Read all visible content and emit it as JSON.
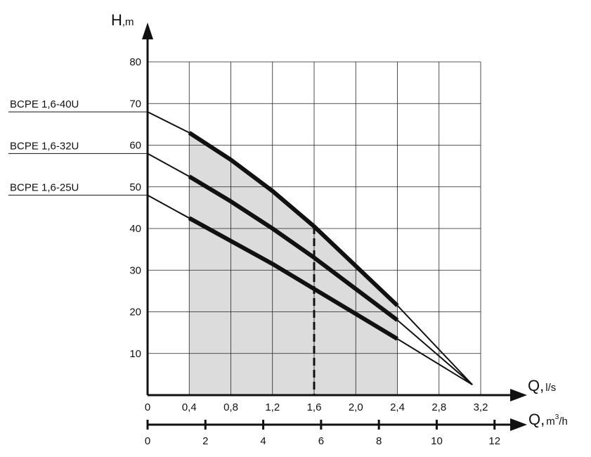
{
  "chart_data": {
    "type": "line",
    "title": "",
    "ylabel": {
      "main": "H",
      "unit": ",m"
    },
    "xlabel_primary": {
      "main": "Q,",
      "unit": "l/s"
    },
    "xlabel_secondary": {
      "main": "Q,",
      "unit_pre": "m",
      "sup": "3",
      "unit_post": "/h"
    },
    "ylim": [
      0,
      80
    ],
    "xlim": [
      0,
      3.2
    ],
    "grid": true,
    "y_ticks": [
      "10",
      "20",
      "30",
      "40",
      "50",
      "60",
      "70",
      "80"
    ],
    "x_ticks_primary": [
      "0",
      "0,4",
      "0,8",
      "1,2",
      "1,6",
      "2,0",
      "2,4",
      "2,8",
      "3,2"
    ],
    "x_ticks_secondary": [
      "0",
      "2",
      "4",
      "6",
      "8",
      "10",
      "12"
    ],
    "operating_range": {
      "q_min": 0.4,
      "q_max": 2.4
    },
    "nominal_flow": 1.6,
    "series": [
      {
        "name": "BCPE  1,6-40U",
        "x": [
          0,
          0.4,
          0.8,
          1.2,
          1.6,
          2.0,
          2.4,
          3.12
        ],
        "y": [
          68,
          63,
          56.5,
          49,
          40.5,
          31,
          21.5,
          2.5
        ]
      },
      {
        "name": "BCPE  1,6-32U",
        "x": [
          0,
          0.4,
          0.8,
          1.2,
          1.6,
          2.0,
          2.4,
          3.12
        ],
        "y": [
          58,
          52.5,
          46.5,
          40,
          33,
          25.5,
          18,
          2.5
        ]
      },
      {
        "name": "BCPE  1,6-25U",
        "x": [
          0,
          0.4,
          0.8,
          1.2,
          1.6,
          2.0,
          2.4,
          3.12
        ],
        "y": [
          48,
          42.5,
          37,
          31.5,
          25.5,
          19.5,
          13.5,
          2.5
        ]
      }
    ]
  }
}
